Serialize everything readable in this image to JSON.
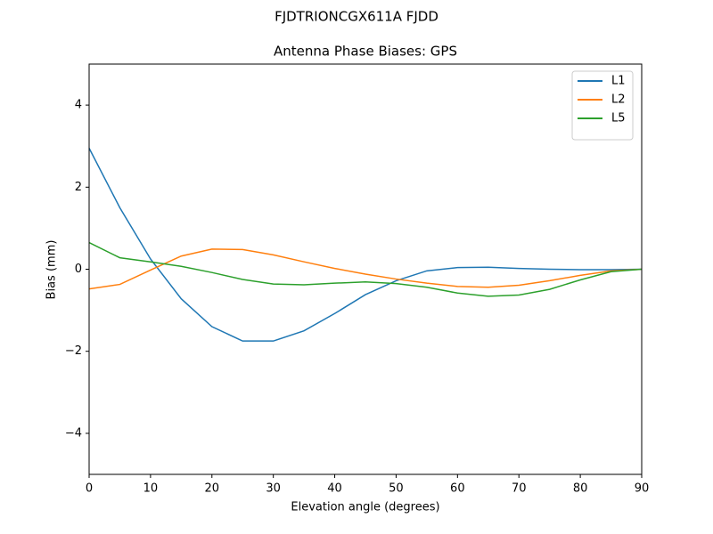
{
  "chart_data": {
    "type": "line",
    "suptitle": "FJDTRIONCGX611A FJDD",
    "title": "Antenna Phase Biases: GPS",
    "xlabel": "Elevation angle (degrees)",
    "ylabel": "Bias (mm)",
    "x": [
      0,
      5,
      10,
      15,
      20,
      25,
      30,
      35,
      40,
      45,
      50,
      55,
      60,
      65,
      70,
      75,
      80,
      85,
      90
    ],
    "series": [
      {
        "name": "L1",
        "color": "#1f77b4",
        "values": [
          2.95,
          1.5,
          0.25,
          -0.72,
          -1.4,
          -1.75,
          -1.75,
          -1.5,
          -1.08,
          -0.62,
          -0.28,
          -0.04,
          0.04,
          0.05,
          0.02,
          0.0,
          -0.01,
          -0.01,
          0
        ]
      },
      {
        "name": "L2",
        "color": "#ff7f0e",
        "values": [
          -0.48,
          -0.37,
          -0.02,
          0.32,
          0.49,
          0.48,
          0.35,
          0.18,
          0.02,
          -0.12,
          -0.24,
          -0.34,
          -0.42,
          -0.44,
          -0.39,
          -0.28,
          -0.15,
          -0.04,
          0
        ]
      },
      {
        "name": "L5",
        "color": "#2ca02c",
        "values": [
          0.65,
          0.28,
          0.18,
          0.07,
          -0.08,
          -0.25,
          -0.36,
          -0.38,
          -0.34,
          -0.31,
          -0.35,
          -0.44,
          -0.58,
          -0.66,
          -0.63,
          -0.49,
          -0.26,
          -0.06,
          0
        ]
      }
    ],
    "xlim": [
      0,
      90
    ],
    "xticks": [
      0,
      10,
      20,
      30,
      40,
      50,
      60,
      70,
      80,
      90
    ],
    "ylim": [
      -5,
      5
    ],
    "yticks": [
      {
        "value": -4,
        "label": "−4"
      },
      {
        "value": -2,
        "label": "−2"
      },
      0,
      2,
      4
    ],
    "legend": "upper right",
    "grid": false
  }
}
